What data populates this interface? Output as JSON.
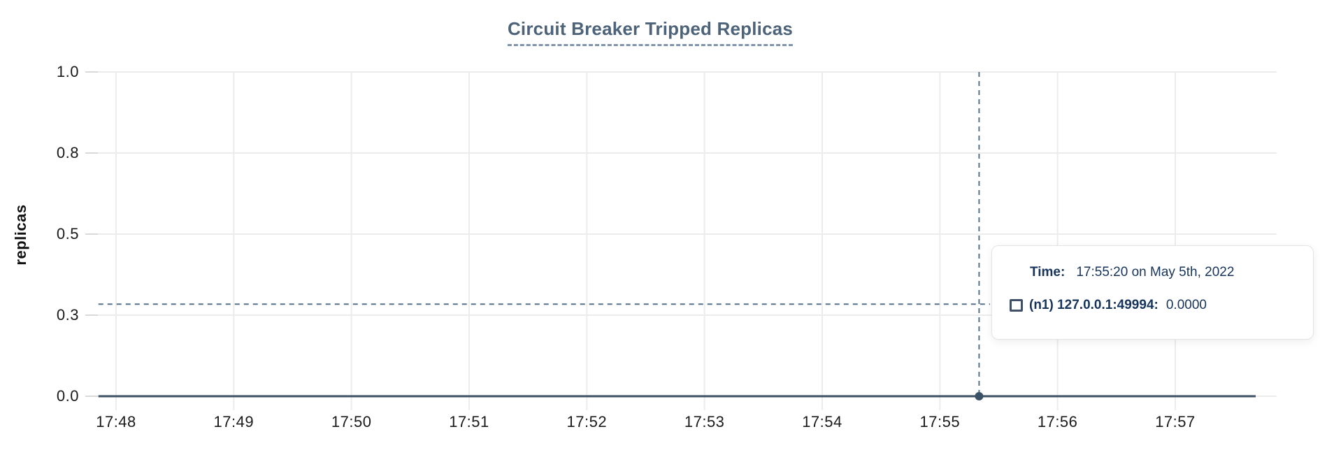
{
  "chart_data": {
    "type": "line",
    "title": "Circuit Breaker Tripped Replicas",
    "ylabel": "replicas",
    "xlabel": "",
    "x_tick_labels": [
      "17:48",
      "17:49",
      "17:50",
      "17:51",
      "17:52",
      "17:53",
      "17:54",
      "17:55",
      "17:56",
      "17:57"
    ],
    "y_tick_labels": [
      "0.0",
      "0.3",
      "0.5",
      "0.8",
      "1.0"
    ],
    "ylim": [
      0.0,
      1.0
    ],
    "grid": true,
    "legend_position": "none",
    "series": [
      {
        "name": "(n1) 127.0.0.1:49994",
        "color": "#3b5166",
        "points": [
          {
            "time": "17:47:51",
            "value": 0
          },
          {
            "time": "17:57:41",
            "value": 0
          }
        ]
      }
    ],
    "cursor": {
      "time": "17:55:20",
      "crosshair_value": 0.284,
      "snapped_value": 0
    }
  },
  "tooltip": {
    "time_label": "Time:",
    "time_value": "17:55:20 on May 5th, 2022",
    "series_label": "(n1) 127.0.0.1:49994:",
    "series_value": "0.0000"
  },
  "colors": {
    "title": "#4d6379",
    "title_underline": "#8094ae",
    "grid": "#ececec",
    "tick_stub": "#d9d9d9",
    "axis_text": "#1a1a1a",
    "series_line": "#3b5166",
    "cursor_dash": "#56718a",
    "cursor_dot": "#3b5166",
    "tooltip_text": "#17345c",
    "tooltip_border": "#e4e4e8",
    "swatch_border": "#3f5068"
  }
}
